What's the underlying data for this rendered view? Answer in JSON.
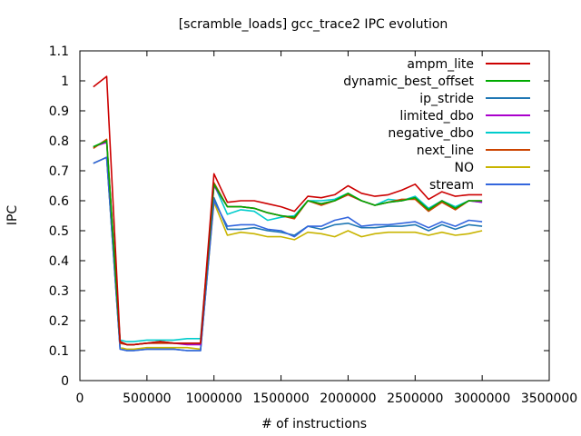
{
  "chart_data": {
    "type": "line",
    "title": "[scramble_loads] gcc_trace2 IPC evolution",
    "xlabel": "# of instructions",
    "ylabel": "IPC",
    "xlim": [
      0,
      3500000
    ],
    "ylim": [
      0,
      1.1
    ],
    "x_ticks": [
      0,
      500000,
      1000000,
      1500000,
      2000000,
      2500000,
      3000000,
      3500000
    ],
    "y_ticks": [
      0,
      0.1,
      0.2,
      0.3,
      0.4,
      0.5,
      0.6,
      0.7,
      0.8,
      0.9,
      1,
      1.1
    ],
    "x_tick_labels": [
      "0",
      "500000",
      "1000000",
      "1500000",
      "2000000",
      "2500000",
      "3000000",
      "3500000"
    ],
    "y_tick_labels": [
      "0",
      "0.1",
      "0.2",
      "0.3",
      "0.4",
      "0.5",
      "0.6",
      "0.7",
      "0.8",
      "0.9",
      "1",
      "1.1"
    ],
    "grid": false,
    "legend_position": "top-right",
    "x": [
      100000,
      200000,
      300000,
      350000,
      400000,
      500000,
      600000,
      700000,
      800000,
      900000,
      1000000,
      1100000,
      1200000,
      1300000,
      1400000,
      1500000,
      1600000,
      1700000,
      1800000,
      1900000,
      2000000,
      2100000,
      2200000,
      2300000,
      2400000,
      2500000,
      2600000,
      2700000,
      2800000,
      2900000,
      3000000
    ],
    "series": [
      {
        "name": "ampm_lite",
        "color": "#cc0000",
        "values": [
          0.98,
          1.015,
          0.13,
          0.12,
          0.12,
          0.125,
          0.13,
          0.125,
          0.125,
          0.125,
          0.69,
          0.595,
          0.6,
          0.6,
          0.59,
          0.58,
          0.565,
          0.615,
          0.61,
          0.62,
          0.65,
          0.625,
          0.615,
          0.62,
          0.635,
          0.655,
          0.605,
          0.63,
          0.615,
          0.62,
          0.62
        ]
      },
      {
        "name": "dynamic_best_offset",
        "color": "#00aa00",
        "values": [
          0.78,
          0.8,
          0.13,
          0.12,
          0.12,
          0.125,
          0.13,
          0.125,
          0.125,
          0.125,
          0.655,
          0.58,
          0.58,
          0.575,
          0.56,
          0.55,
          0.545,
          0.6,
          0.59,
          0.6,
          0.625,
          0.6,
          0.585,
          0.595,
          0.6,
          0.61,
          0.57,
          0.6,
          0.575,
          0.6,
          0.6
        ]
      },
      {
        "name": "ip_stride",
        "color": "#1f77b4",
        "values": [
          0.725,
          0.745,
          0.105,
          0.1,
          0.1,
          0.105,
          0.105,
          0.105,
          0.1,
          0.1,
          0.61,
          0.505,
          0.505,
          0.51,
          0.5,
          0.495,
          0.485,
          0.515,
          0.505,
          0.52,
          0.525,
          0.51,
          0.51,
          0.515,
          0.515,
          0.52,
          0.5,
          0.52,
          0.505,
          0.52,
          0.515
        ]
      },
      {
        "name": "limited_dbo",
        "color": "#aa00cc",
        "values": [
          0.78,
          0.795,
          0.125,
          0.12,
          0.12,
          0.125,
          0.125,
          0.125,
          0.12,
          0.12,
          0.65,
          0.58,
          0.58,
          0.575,
          0.56,
          0.55,
          0.545,
          0.6,
          0.59,
          0.6,
          0.62,
          0.6,
          0.585,
          0.595,
          0.6,
          0.61,
          0.57,
          0.6,
          0.575,
          0.6,
          0.595
        ]
      },
      {
        "name": "negative_dbo",
        "color": "#00cccc",
        "values": [
          0.78,
          0.8,
          0.135,
          0.13,
          0.13,
          0.135,
          0.135,
          0.135,
          0.14,
          0.14,
          0.655,
          0.555,
          0.57,
          0.565,
          0.535,
          0.545,
          0.55,
          0.6,
          0.6,
          0.605,
          0.625,
          0.6,
          0.585,
          0.605,
          0.6,
          0.615,
          0.575,
          0.6,
          0.58,
          0.6,
          0.595
        ]
      },
      {
        "name": "next_line",
        "color": "#cc4400",
        "values": [
          0.775,
          0.805,
          0.125,
          0.12,
          0.12,
          0.125,
          0.125,
          0.125,
          0.125,
          0.125,
          0.66,
          0.58,
          0.58,
          0.575,
          0.56,
          0.55,
          0.54,
          0.6,
          0.585,
          0.6,
          0.62,
          0.6,
          0.585,
          0.595,
          0.605,
          0.605,
          0.565,
          0.595,
          0.57,
          0.6,
          0.6
        ]
      },
      {
        "name": "NO",
        "color": "#c8b400",
        "values": [
          0.725,
          0.745,
          0.11,
          0.105,
          0.105,
          0.11,
          0.11,
          0.11,
          0.11,
          0.105,
          0.595,
          0.485,
          0.495,
          0.49,
          0.48,
          0.48,
          0.47,
          0.495,
          0.49,
          0.48,
          0.5,
          0.48,
          0.49,
          0.495,
          0.495,
          0.495,
          0.485,
          0.495,
          0.485,
          0.49,
          0.5
        ]
      },
      {
        "name": "stream",
        "color": "#3366dd",
        "values": [
          0.725,
          0.745,
          0.105,
          0.1,
          0.1,
          0.105,
          0.105,
          0.105,
          0.1,
          0.1,
          0.6,
          0.515,
          0.52,
          0.52,
          0.505,
          0.5,
          0.48,
          0.515,
          0.515,
          0.535,
          0.545,
          0.515,
          0.52,
          0.52,
          0.525,
          0.53,
          0.51,
          0.53,
          0.515,
          0.535,
          0.53
        ]
      }
    ]
  }
}
